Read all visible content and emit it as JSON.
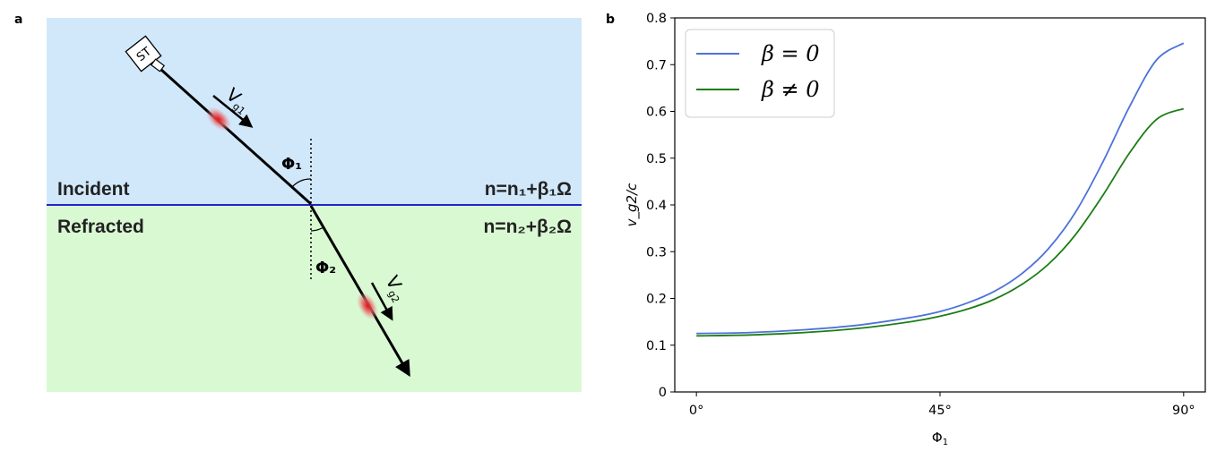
{
  "panel_a": {
    "label": "a",
    "incident_label": "Incident",
    "refracted_label": "Refracted",
    "index_incident": "n=n₁+β₁Ω",
    "index_refracted": "n=n₂+β₂Ω",
    "source_label": "ST",
    "phi1_label": "Φ₁",
    "phi2_label": "Φ₂",
    "vg1_main": "V",
    "vg1_sub": "g1",
    "vg2_main": "V",
    "vg2_sub": "g2",
    "colors": {
      "incident_bg": "#d1e8fb",
      "refracted_bg": "#d9f9d3",
      "interface": "#2323c8",
      "pulse": "#e0161b"
    }
  },
  "panel_b": {
    "label": "b"
  },
  "chart_data": {
    "type": "line",
    "title": "",
    "xlabel_main": "Φ",
    "xlabel_sub": "1",
    "ylabel": "v_g2/c",
    "xlim": [
      -4,
      94
    ],
    "ylim": [
      0,
      0.8
    ],
    "x_ticks": [
      0,
      45,
      90
    ],
    "x_tick_labels": [
      "0°",
      "45°",
      "90°"
    ],
    "y_ticks": [
      0,
      0.1,
      0.2,
      0.3,
      0.4,
      0.5,
      0.6,
      0.7,
      0.8
    ],
    "y_tick_labels": [
      "0",
      "0.1",
      "0.2",
      "0.3",
      "0.4",
      "0.5",
      "0.6",
      "0.7",
      "0.8"
    ],
    "grid": false,
    "legend_position": "upper-left",
    "x": [
      0,
      10,
      20,
      30,
      40,
      45,
      50,
      55,
      60,
      65,
      70,
      75,
      80,
      85,
      90
    ],
    "series": [
      {
        "name": "β = 0",
        "color": "#4d72d9",
        "values": [
          0.125,
          0.127,
          0.133,
          0.143,
          0.16,
          0.172,
          0.19,
          0.215,
          0.252,
          0.306,
          0.384,
          0.49,
          0.61,
          0.71,
          0.746
        ]
      },
      {
        "name": "β ≠ 0",
        "color": "#1c7d15",
        "values": [
          0.12,
          0.122,
          0.127,
          0.136,
          0.151,
          0.162,
          0.177,
          0.198,
          0.229,
          0.273,
          0.336,
          0.419,
          0.511,
          0.583,
          0.606
        ]
      }
    ]
  }
}
